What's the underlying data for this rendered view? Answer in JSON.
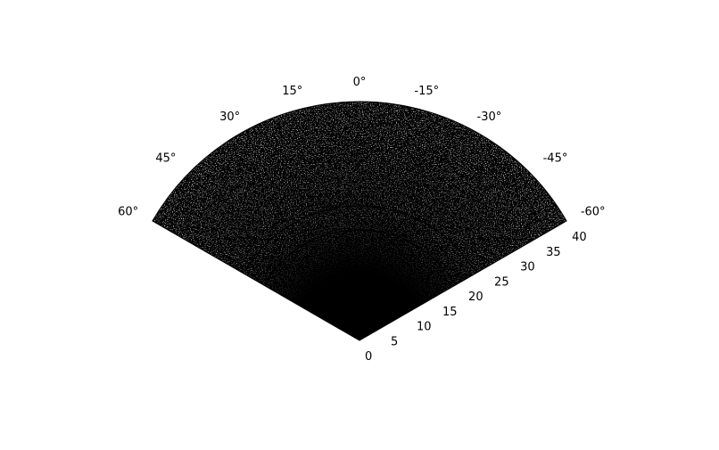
{
  "chart_data": {
    "type": "polar-fan",
    "title": "",
    "theta_unit": "°",
    "theta_range": [
      -60,
      60
    ],
    "theta_ticks": [
      60,
      45,
      30,
      15,
      0,
      -15,
      -30,
      -45,
      -60
    ],
    "r_range": [
      0,
      40
    ],
    "r_ticks": [
      0,
      5,
      10,
      15,
      20,
      25,
      30,
      35,
      40
    ],
    "grid": false,
    "fill_color": "#000000",
    "speckle_color": "#ffffff",
    "inner_arcs_r": [
      18.5,
      22.5
    ],
    "inner_arc_color": "#000000"
  }
}
